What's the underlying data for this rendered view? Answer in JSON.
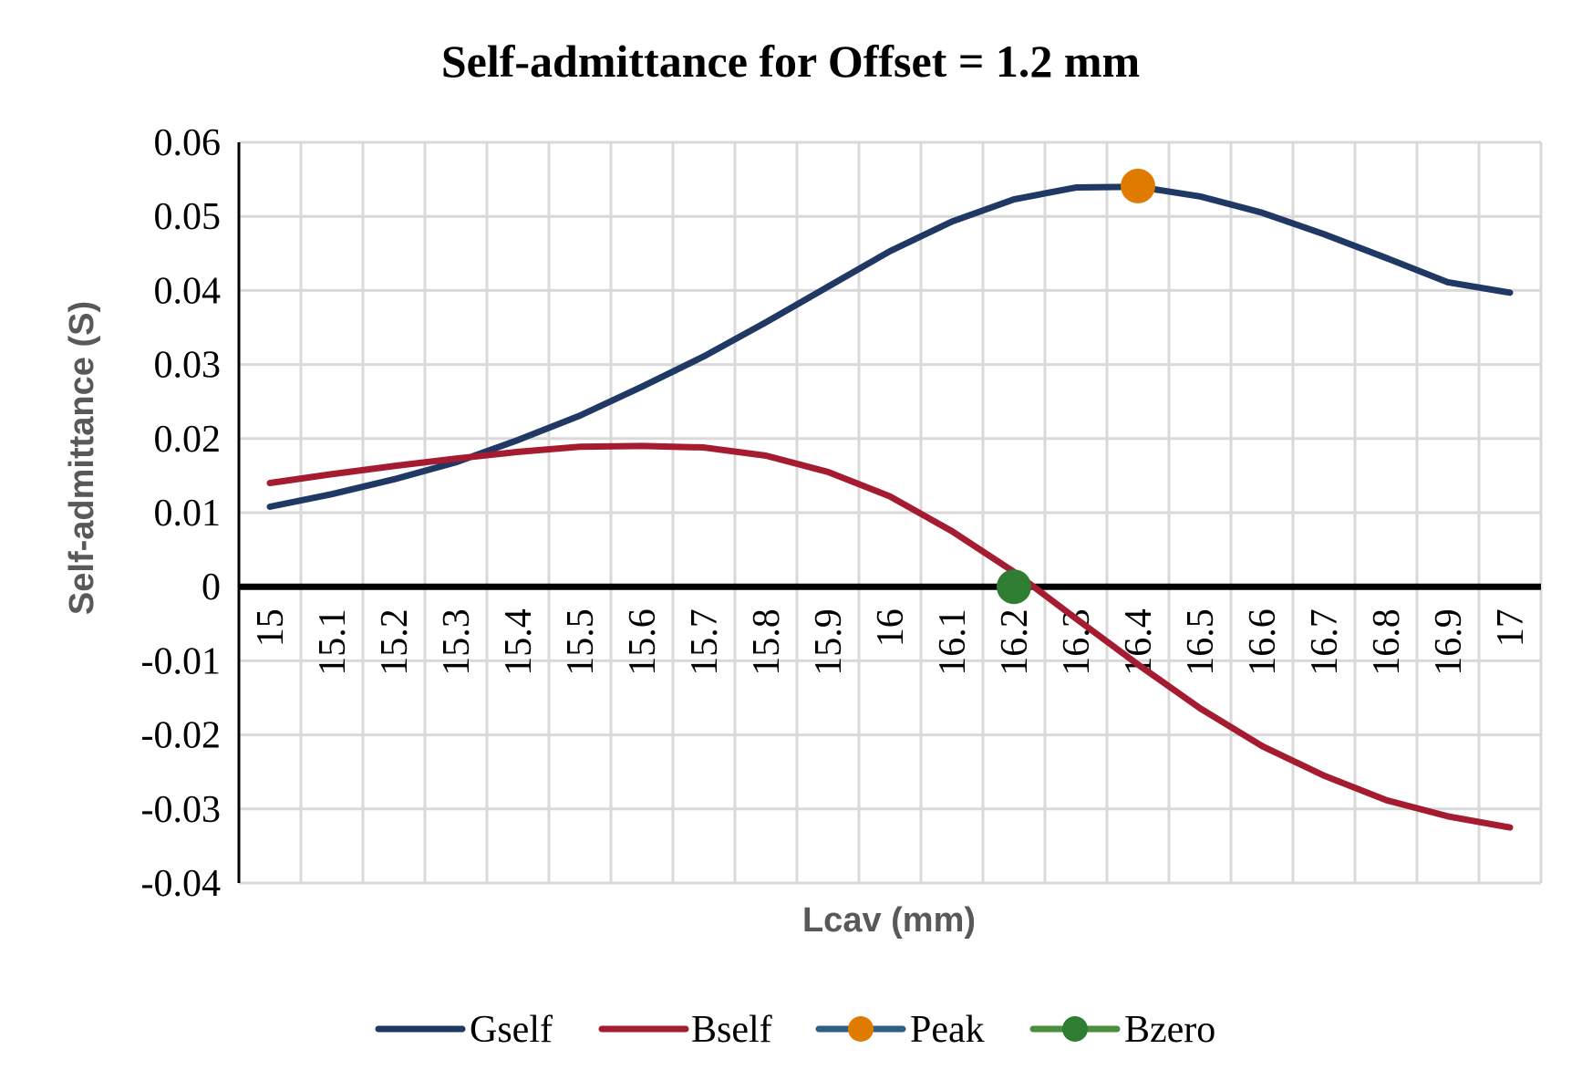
{
  "chart_data": {
    "type": "line",
    "title": "Self-admittance for Offset = 1.2 mm",
    "xlabel": "Lcav (mm)",
    "ylabel": "Self-admittance (S)",
    "categories": [
      "15",
      "15.1",
      "15.2",
      "15.3",
      "15.4",
      "15.5",
      "15.6",
      "15.7",
      "15.8",
      "15.9",
      "16",
      "16.1",
      "16.2",
      "16.3",
      "16.4",
      "16.5",
      "16.6",
      "16.7",
      "16.8",
      "16.9",
      "17"
    ],
    "ylim": [
      -0.04,
      0.06
    ],
    "yticks": [
      "0.06",
      "0.05",
      "0.04",
      "0.03",
      "0.02",
      "0.01",
      "0",
      "-0.01",
      "-0.02",
      "-0.03",
      "-0.04"
    ],
    "grid": true,
    "legend_position": "bottom",
    "series": [
      {
        "name": "Gself",
        "color": "#1f3864",
        "values": [
          0.0108,
          0.0125,
          0.0145,
          0.0168,
          0.0198,
          0.0231,
          0.027,
          0.0311,
          0.0357,
          0.0405,
          0.0453,
          0.0493,
          0.0523,
          0.0539,
          0.054,
          0.0527,
          0.0505,
          0.0476,
          0.0444,
          0.0411,
          0.0397
        ]
      },
      {
        "name": "Bself",
        "color": "#a51c30",
        "values": [
          0.014,
          0.0152,
          0.0163,
          0.0173,
          0.0182,
          0.0189,
          0.019,
          0.0188,
          0.0177,
          0.0155,
          0.0122,
          0.0075,
          0.002,
          -0.0043,
          -0.0105,
          -0.0164,
          -0.0215,
          -0.0255,
          -0.0288,
          -0.031,
          -0.0325
        ]
      },
      {
        "name": "Peak",
        "color": "#e07b00",
        "marker": "circle",
        "points": [
          {
            "x": "16.4",
            "y": 0.0541
          }
        ]
      },
      {
        "name": "Bzero",
        "color": "#2e7d32",
        "marker": "circle",
        "points": [
          {
            "x": "16.2",
            "y": 0
          }
        ]
      }
    ],
    "legend_line_colors": {
      "Peak": "#2e5f85",
      "Bzero": "#4a8f3e"
    },
    "axis_color": "#000000",
    "grid_color": "#d9d9d9"
  }
}
